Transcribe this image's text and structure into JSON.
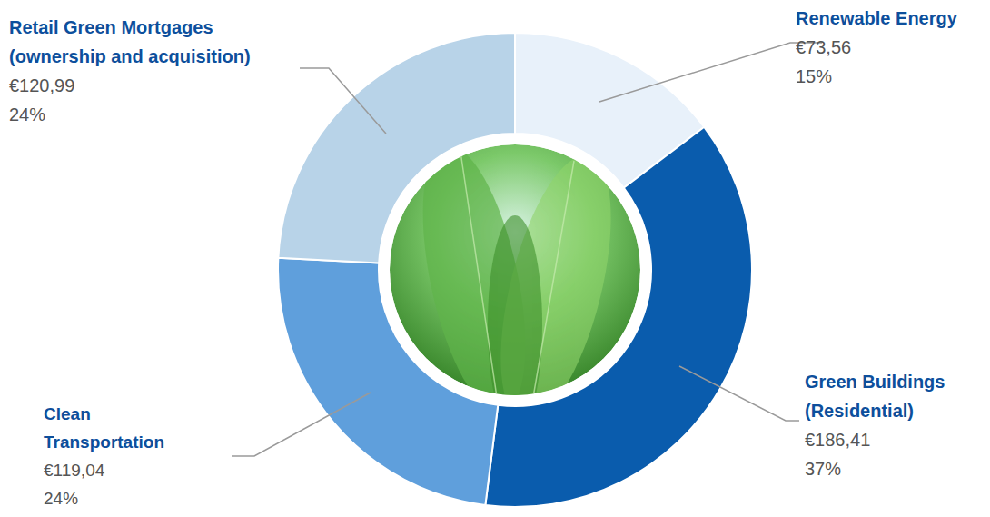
{
  "chart_data": {
    "type": "pie",
    "categories": [
      "Renewable Energy",
      "Green Buildings (Residential)",
      "Clean Transportation",
      "Retail Green Mortgages (ownership and acquisition)"
    ],
    "values": [
      73.56,
      186.41,
      119.04,
      120.99
    ],
    "value_labels": [
      "€73,56",
      "€186,41",
      "€119,04",
      "€120,99"
    ],
    "percent_labels": [
      "15%",
      "37%",
      "24%",
      "24%"
    ],
    "colors": [
      "#e8f1fa",
      "#0a5cad",
      "#5f9fdc",
      "#b8d3e8"
    ],
    "data_labels": true
  }
}
